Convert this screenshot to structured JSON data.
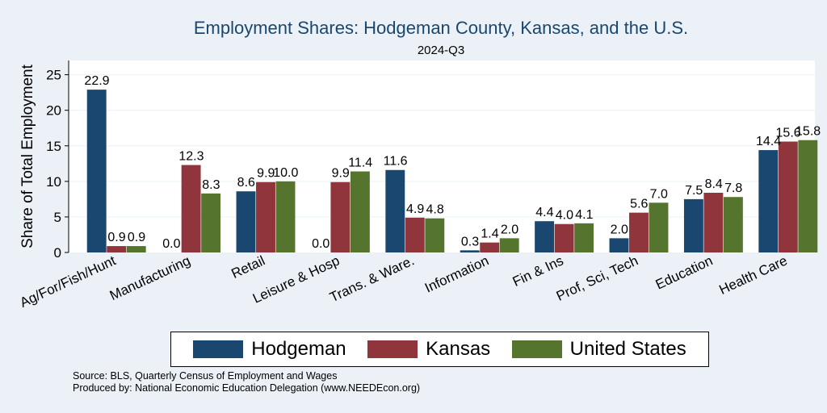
{
  "chart_data": {
    "type": "bar",
    "title": "Employment Shares: Hodgeman County, Kansas, and the U.S.",
    "subtitle": "2024-Q3",
    "ylabel": "Share of Total Employment",
    "ylim": [
      0,
      27
    ],
    "yticks": [
      0,
      5,
      10,
      15,
      20,
      25
    ],
    "grid": true,
    "legend_position": "bottom",
    "categories": [
      "Ag/For/Fish/Hunt",
      "Manufacturing",
      "Retail",
      "Leisure & Hosp",
      "Trans. & Ware.",
      "Information",
      "Fin & Ins",
      "Prof, Sci, Tech",
      "Education",
      "Health Care"
    ],
    "series": [
      {
        "name": "Hodgeman",
        "color": "#1a476f",
        "values": [
          22.9,
          0.0,
          8.6,
          0.0,
          11.6,
          0.3,
          4.4,
          2.0,
          7.5,
          14.4
        ],
        "labels": [
          "22.9",
          "0.0",
          "8.6",
          "0.0",
          "11.6",
          "0.3",
          "4.4",
          "2.0",
          "7.5",
          "14.4"
        ]
      },
      {
        "name": "Kansas",
        "color": "#90353b",
        "values": [
          0.9,
          12.3,
          9.9,
          9.9,
          4.9,
          1.4,
          4.0,
          5.6,
          8.4,
          15.6
        ],
        "labels": [
          "0.9",
          "12.3",
          "9.9",
          "9.9",
          "4.9",
          "1.4",
          "4.0",
          "5.6",
          "8.4",
          "15.6"
        ]
      },
      {
        "name": "United States",
        "color": "#55752f",
        "values": [
          0.9,
          8.3,
          10.0,
          11.4,
          4.8,
          2.0,
          4.1,
          7.0,
          7.8,
          15.8
        ],
        "labels": [
          "0.9",
          "8.3",
          "10.0",
          "11.4",
          "4.8",
          "2.0",
          "4.1",
          "7.0",
          "7.8",
          "15.8"
        ]
      }
    ]
  },
  "notes": {
    "source": "Source: BLS, Quarterly Census of Employment and Wages",
    "produced": "Produced by: National Economic Education Delegation (www.NEEDEcon.org)"
  }
}
